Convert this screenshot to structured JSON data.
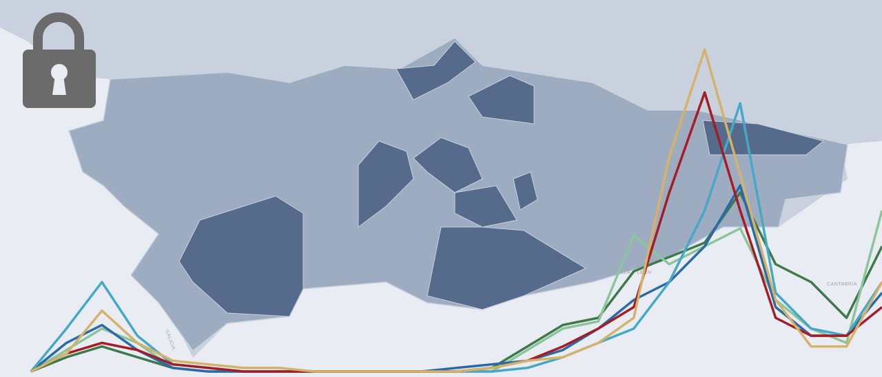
{
  "chart_data": {
    "type": "line",
    "x": [
      0,
      1,
      2,
      3,
      4,
      5,
      6,
      7,
      8,
      9,
      10,
      11,
      12,
      13,
      14,
      15,
      16,
      17,
      18,
      19,
      20,
      21,
      22,
      23,
      24
    ],
    "xlim": [
      0,
      24
    ],
    "ylim": [
      0,
      100
    ],
    "series": [
      {
        "color": "#3d7a4a",
        "values": [
          0,
          4,
          7,
          4,
          1,
          0,
          0,
          0,
          0,
          0,
          0,
          0,
          0,
          1,
          7,
          13,
          15,
          28,
          32,
          36,
          50,
          30,
          25,
          15,
          35
        ]
      },
      {
        "color": "#8cc49c",
        "values": [
          0,
          6,
          12,
          8,
          1,
          0,
          0,
          0,
          0,
          0,
          0,
          0,
          0,
          0,
          6,
          12,
          14,
          38,
          30,
          35,
          40,
          20,
          12,
          8,
          45
        ]
      },
      {
        "color": "#2a6aa8",
        "values": [
          0,
          8,
          13,
          6,
          1,
          0,
          0,
          0,
          0,
          0,
          0,
          0,
          1,
          2,
          3,
          6,
          12,
          20,
          25,
          35,
          52,
          18,
          10,
          10,
          22
        ]
      },
      {
        "color": "#45a8c4",
        "values": [
          0,
          12,
          25,
          10,
          2,
          1,
          0,
          0,
          0,
          0,
          0,
          0,
          0,
          0,
          1,
          4,
          8,
          12,
          25,
          45,
          75,
          22,
          12,
          10,
          25
        ]
      },
      {
        "color": "#a51c24",
        "values": [
          0,
          5,
          8,
          6,
          2,
          1,
          0,
          0,
          0,
          0,
          0,
          0,
          0,
          1,
          3,
          7,
          12,
          18,
          50,
          78,
          45,
          15,
          10,
          10,
          18
        ]
      },
      {
        "color": "#d4b26a",
        "values": [
          0,
          5,
          17,
          8,
          3,
          2,
          1,
          1,
          0,
          0,
          0,
          0,
          0,
          1,
          3,
          4,
          8,
          15,
          60,
          90,
          55,
          20,
          7,
          7,
          25
        ]
      }
    ]
  },
  "map_labels": [
    "CASTILLA Y LEÓN",
    "GALICIA",
    "CANTABRIA"
  ]
}
